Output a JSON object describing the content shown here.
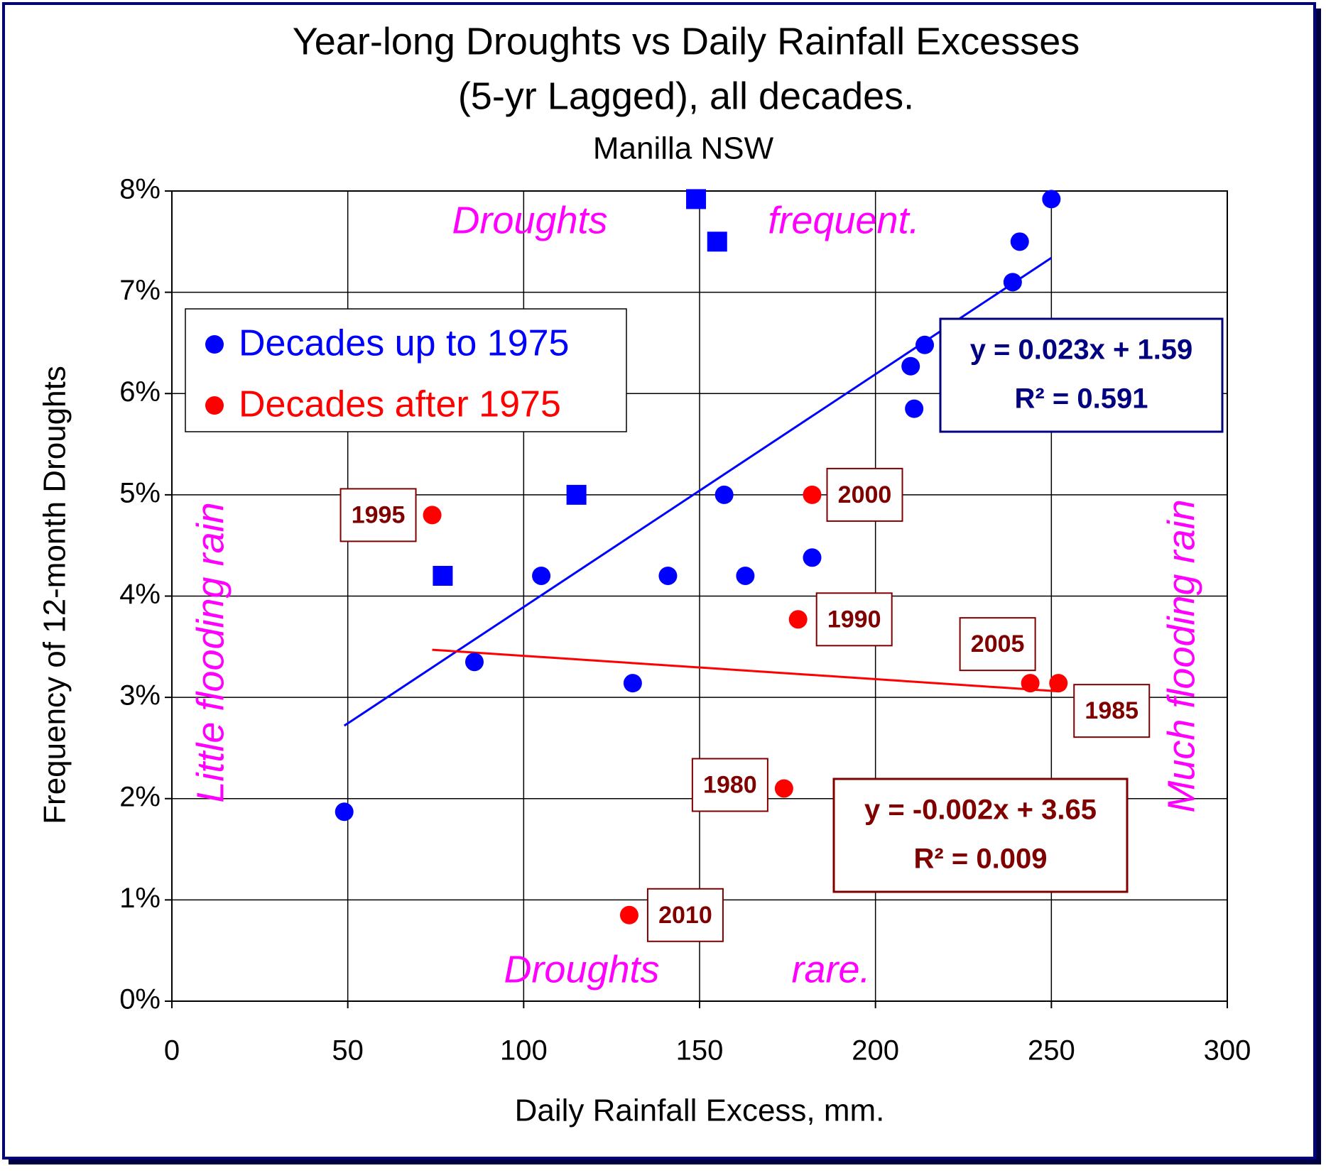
{
  "chart_data": {
    "type": "scatter",
    "title": [
      "Year-long Droughts vs Daily Rainfall Excesses",
      "(5-yr Lagged), all decades."
    ],
    "subtitle": "Manilla NSW",
    "x_label": "Daily Rainfall Excess, mm.",
    "y_label": "Frequency of 12-month Droughts",
    "xlim": [
      0,
      300
    ],
    "xticks": [
      0,
      50,
      100,
      150,
      200,
      250,
      300
    ],
    "ylim": [
      0,
      8
    ],
    "yticks": [
      {
        "value": 0,
        "label": "0%"
      },
      {
        "value": 1,
        "label": "1%"
      },
      {
        "value": 2,
        "label": "2%"
      },
      {
        "value": 3,
        "label": "3%"
      },
      {
        "value": 4,
        "label": "4%"
      },
      {
        "value": 5,
        "label": "5%"
      },
      {
        "value": 6,
        "label": "6%"
      },
      {
        "value": 7,
        "label": "7%"
      },
      {
        "value": 8,
        "label": "8%"
      }
    ],
    "grid": true,
    "legend": "upper left",
    "series": [
      {
        "name": "Decades up to 1975",
        "color": "#0000ff",
        "marker": "circle",
        "x": [
          49,
          86,
          105,
          131,
          141,
          157,
          163,
          182,
          210,
          211,
          214,
          239,
          241,
          250
        ],
        "values": [
          1.87,
          3.35,
          4.2,
          3.14,
          4.2,
          5.0,
          4.2,
          4.38,
          6.27,
          5.85,
          6.48,
          7.1,
          7.5,
          7.92
        ]
      },
      {
        "color": "#0000ff",
        "marker": "square",
        "x": [
          77,
          115,
          149,
          155
        ],
        "values": [
          4.2,
          5.0,
          7.92,
          7.5
        ]
      },
      {
        "name": "Decades after 1975",
        "color": "#ff0000",
        "marker": "circle",
        "x": [
          74,
          182,
          178,
          244,
          252,
          174,
          130
        ],
        "values": [
          4.8,
          5.0,
          3.77,
          3.14,
          3.14,
          2.1,
          0.85
        ],
        "point_labels": [
          "1995",
          "2000",
          "1990",
          "2005",
          "1985",
          "1980",
          "2010"
        ]
      }
    ],
    "trendlines": [
      {
        "color": "#0000ff",
        "text_color": "#000080",
        "x": [
          49,
          250
        ],
        "values": [
          2.72,
          7.34
        ],
        "equation": "y = 0.023x + 1.59",
        "r2": "R² = 0.591"
      },
      {
        "color": "#ff0000",
        "text_color": "#800000",
        "x": [
          74,
          252
        ],
        "values": [
          3.47,
          3.06
        ],
        "equation": "y = -0.002x + 3.65",
        "r2": "R² = 0.009"
      }
    ],
    "annotations": [
      "Droughts",
      "frequent.",
      "Droughts",
      "rare.",
      "Little flooding rain",
      "Much flooding rain"
    ]
  }
}
